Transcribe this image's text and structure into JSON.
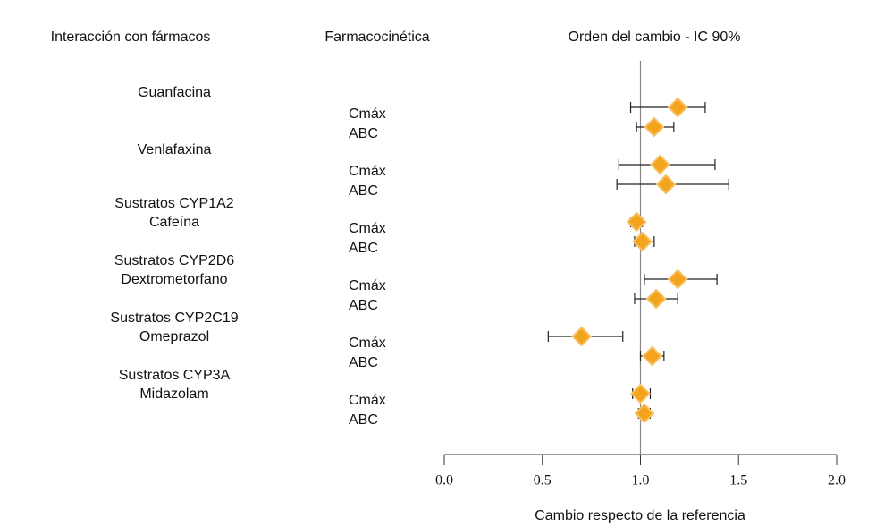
{
  "chart_data": {
    "type": "forest",
    "headers": [
      "Interacción con fármacos",
      "Farmacocinética",
      "Orden del cambio - IC 90%"
    ],
    "x_label": "Cambio respecto de la referencia",
    "xlim": [
      0,
      2
    ],
    "xticks": [
      {
        "value": 0,
        "label": "0.0"
      },
      {
        "value": 0.5,
        "label": "0.5"
      },
      {
        "value": 1,
        "label": "1.0"
      },
      {
        "value": 1.5,
        "label": "1.5"
      },
      {
        "value": 2,
        "label": "2.0"
      }
    ],
    "reference": 1,
    "color": "#f4a31c",
    "groups": [
      {
        "label": [
          "Guanfacina"
        ],
        "rows": [
          {
            "name": "Cmáx",
            "value": 1.19,
            "ci": [
              0.95,
              1.33
            ]
          },
          {
            "name": "ABC",
            "value": 1.07,
            "ci": [
              0.98,
              1.17
            ]
          }
        ]
      },
      {
        "label": [
          "Venlafaxina"
        ],
        "rows": [
          {
            "name": "Cmáx",
            "value": 1.1,
            "ci": [
              0.89,
              1.38
            ]
          },
          {
            "name": "ABC",
            "value": 1.13,
            "ci": [
              0.88,
              1.45
            ]
          }
        ]
      },
      {
        "label": [
          "Sustratos CYP1A2",
          "Cafeína"
        ],
        "rows": [
          {
            "name": "Cmáx",
            "value": 0.98,
            "ci": [
              0.95,
              1.01
            ]
          },
          {
            "name": "ABC",
            "value": 1.01,
            "ci": [
              0.97,
              1.07
            ]
          }
        ]
      },
      {
        "label": [
          "Sustratos CYP2D6",
          "Dextrometorfano"
        ],
        "rows": [
          {
            "name": "Cmáx",
            "value": 1.19,
            "ci": [
              1.02,
              1.39
            ]
          },
          {
            "name": "ABC",
            "value": 1.08,
            "ci": [
              0.97,
              1.19
            ]
          }
        ]
      },
      {
        "label": [
          "Sustratos CYP2C19",
          "Omeprazol"
        ],
        "rows": [
          {
            "name": "Cmáx",
            "value": 0.7,
            "ci": [
              0.53,
              0.91
            ]
          },
          {
            "name": "ABC",
            "value": 1.06,
            "ci": [
              1.0,
              1.12
            ]
          }
        ]
      },
      {
        "label": [
          "Sustratos CYP3A",
          "Midazolam"
        ],
        "rows": [
          {
            "name": "Cmáx",
            "value": 1.0,
            "ci": [
              0.96,
              1.05
            ]
          },
          {
            "name": "ABC",
            "value": 1.02,
            "ci": [
              0.99,
              1.05
            ]
          }
        ]
      }
    ]
  }
}
